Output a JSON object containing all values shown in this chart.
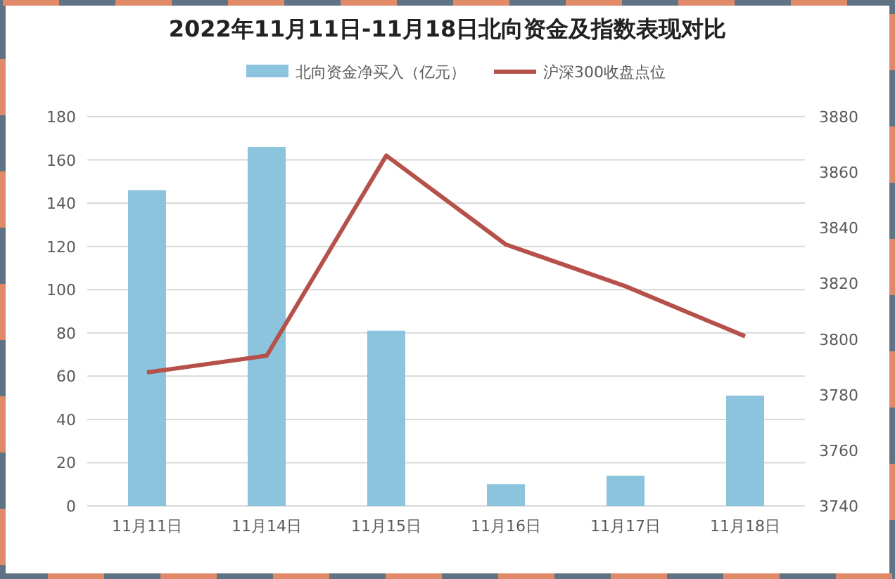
{
  "chart_data": {
    "type": "bar",
    "title": "2022年11月11日-11月18日北向资金及指数表现对比",
    "categories": [
      "11月11日",
      "11月14日",
      "11月15日",
      "11月16日",
      "11月17日",
      "11月18日"
    ],
    "series": [
      {
        "name": "北向资金净买入（亿元）",
        "color": "#8cc3dd",
        "values": [
          146,
          166,
          81,
          10,
          14,
          51
        ]
      },
      {
        "name": "沪深300收盘点位",
        "type": "line",
        "axis": "y2",
        "color": "#b5514a",
        "values": [
          3788,
          3794,
          3866,
          3834,
          3819,
          3801
        ]
      }
    ],
    "ylim": [
      0,
      180
    ],
    "yticks": [
      0,
      20,
      40,
      60,
      80,
      100,
      120,
      140,
      160,
      180
    ],
    "y2lim": [
      3740,
      3880
    ],
    "y2ticks": [
      3740,
      3760,
      3780,
      3800,
      3820,
      3840,
      3860,
      3880
    ],
    "grid": "y",
    "legend": "top",
    "marker": "none",
    "line_style": "solid"
  }
}
